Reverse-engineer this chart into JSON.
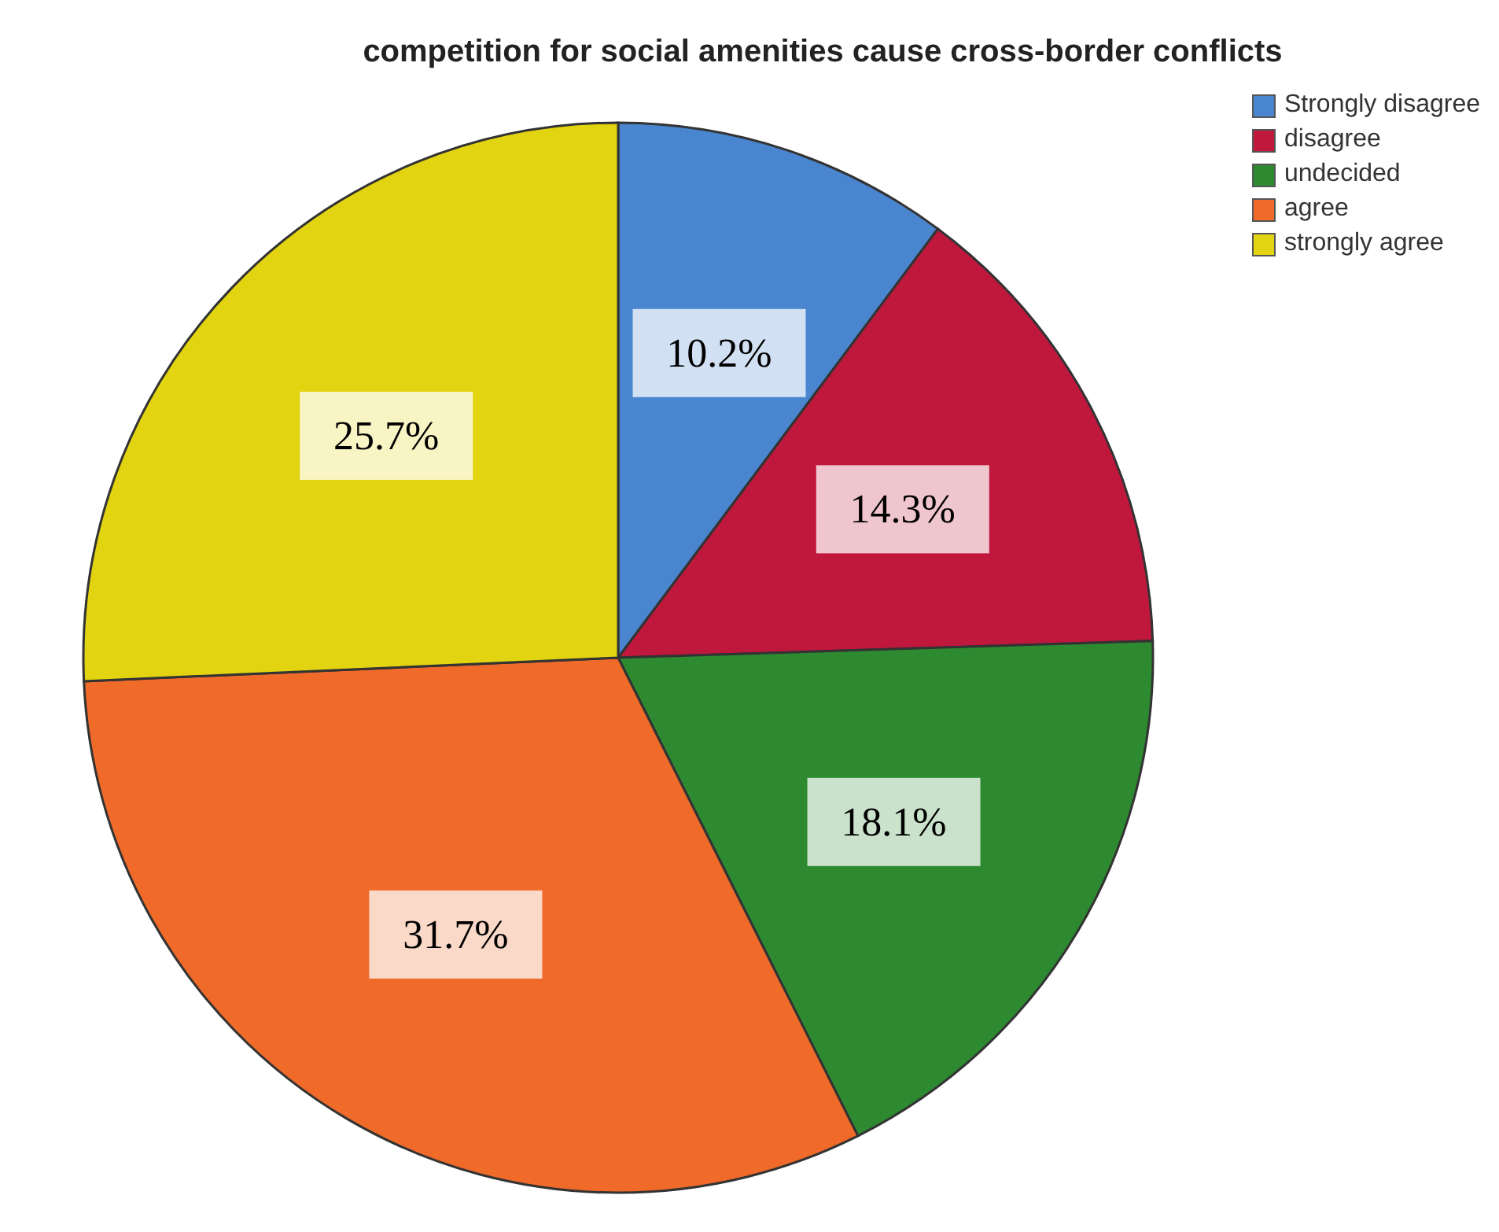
{
  "chart_data": {
    "type": "pie",
    "title": "competition for social amenities cause cross-border conflicts",
    "categories": [
      "Strongly disagree",
      "disagree",
      "undecided",
      "agree",
      "strongly agree"
    ],
    "values": [
      10.2,
      14.3,
      18.1,
      31.7,
      25.7
    ],
    "colors": [
      "#4a86d0",
      "#c0183c",
      "#2e8a30",
      "#f06a2a",
      "#e2d410"
    ],
    "value_labels": [
      "10.2%",
      "14.3%",
      "18.1%",
      "31.7%",
      "25.7%"
    ],
    "legend": "top right"
  }
}
